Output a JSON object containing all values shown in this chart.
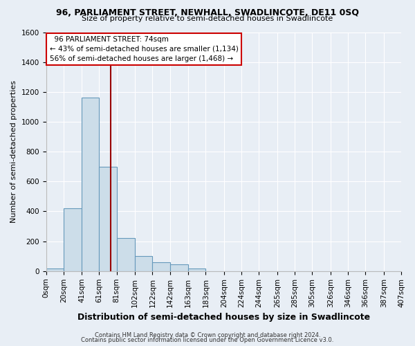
{
  "title": "96, PARLIAMENT STREET, NEWHALL, SWADLINCOTE, DE11 0SQ",
  "subtitle": "Size of property relative to semi-detached houses in Swadlincote",
  "xlabel": "Distribution of semi-detached houses by size in Swadlincote",
  "ylabel": "Number of semi-detached properties",
  "property_size": 74,
  "bin_starts": [
    0,
    20,
    41,
    61,
    81,
    102,
    122,
    142,
    163,
    183,
    204,
    224,
    244,
    265,
    285,
    305,
    326,
    346,
    366,
    387
  ],
  "bin_widths": [
    20,
    21,
    20,
    20,
    21,
    20,
    20,
    21,
    20,
    21,
    20,
    20,
    21,
    20,
    20,
    21,
    20,
    20,
    21,
    20
  ],
  "bin_labels": [
    "0sqm",
    "20sqm",
    "41sqm",
    "61sqm",
    "81sqm",
    "102sqm",
    "122sqm",
    "142sqm",
    "163sqm",
    "183sqm",
    "204sqm",
    "224sqm",
    "244sqm",
    "265sqm",
    "285sqm",
    "305sqm",
    "326sqm",
    "346sqm",
    "366sqm",
    "387sqm",
    "407sqm"
  ],
  "counts": [
    20,
    420,
    1160,
    700,
    220,
    100,
    60,
    45,
    20,
    0,
    0,
    0,
    0,
    0,
    0,
    0,
    0,
    0,
    0,
    0
  ],
  "bar_color": "#ccdde9",
  "bar_edge_color": "#6699bb",
  "vline_color": "#990000",
  "vline_x": 74,
  "legend_line1": "96 PARLIAMENT STREET: 74sqm",
  "legend_line2": "← 43% of semi-detached houses are smaller (1,134)",
  "legend_line3": "56% of semi-detached houses are larger (1,468) →",
  "legend_box_color": "#cc0000",
  "footer_line1": "Contains HM Land Registry data © Crown copyright and database right 2024.",
  "footer_line2": "Contains public sector information licensed under the Open Government Licence v3.0.",
  "bg_color": "#e8eef5",
  "ylim": [
    0,
    1600
  ],
  "yticks": [
    0,
    200,
    400,
    600,
    800,
    1000,
    1200,
    1400,
    1600
  ],
  "title_fontsize": 9,
  "subtitle_fontsize": 8,
  "axis_label_fontsize": 8,
  "tick_fontsize": 7.5
}
